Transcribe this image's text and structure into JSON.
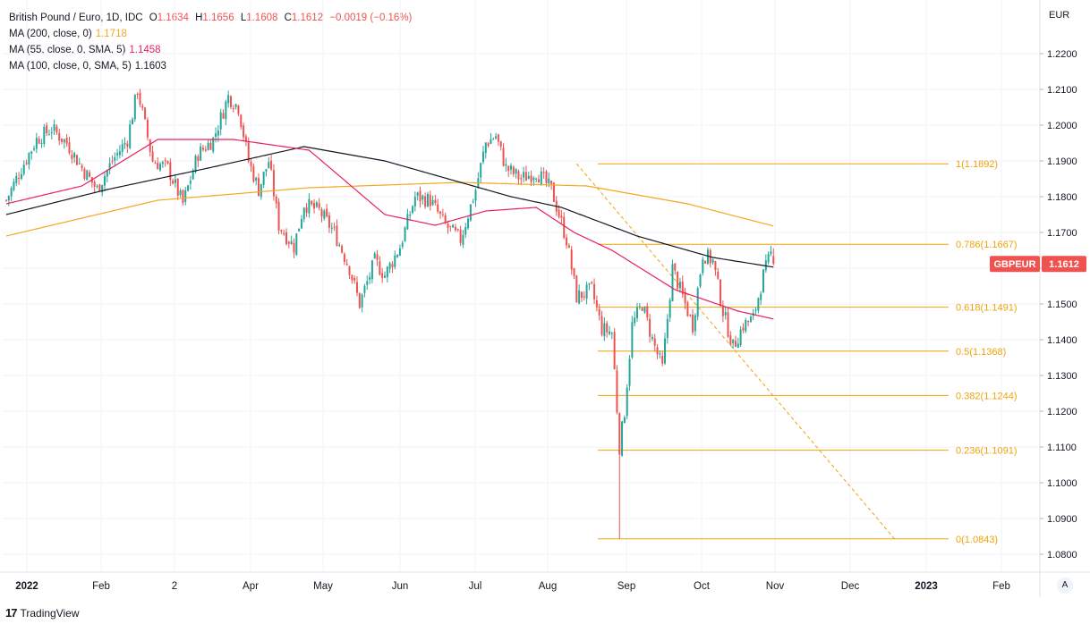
{
  "legend": {
    "title": "British Pound / Euro, 1D, IDC",
    "o_label": "O",
    "o_value": "1.1634",
    "h_label": "H",
    "h_value": "1.1656",
    "l_label": "L",
    "l_value": "1.1608",
    "c_label": "C",
    "c_value": "1.1612",
    "change": "−0.0019 (−0.16%)",
    "ma200_label": "MA (200, close, 0)",
    "ma200_value": "1.1718",
    "ma55_label": "MA (55, close, 0, SMA, 5)",
    "ma55_value": "1.1458",
    "ma100_label": "MA (100, close, 0, SMA, 5)",
    "ma100_value": "1.1603"
  },
  "currency": "EUR",
  "auto_button": "A",
  "brand": {
    "logo": "17",
    "name": "TradingView"
  },
  "colors": {
    "up": "#26a69a",
    "down": "#ef5350",
    "ma200": "#f5a623",
    "ma55": "#e91e63",
    "ma100": "#131722",
    "fib": "#f0a30a",
    "price_tag": "#ef5350"
  },
  "chart_data": {
    "type": "candlestick",
    "title": "British Pound / Euro, 1D, IDC",
    "ylabel": "EUR",
    "ylim": [
      1.075,
      1.228
    ],
    "y_ticks": [
      "1.2200",
      "1.2100",
      "1.2000",
      "1.1900",
      "1.1800",
      "1.1700",
      "1.1600",
      "1.1500",
      "1.1400",
      "1.1300",
      "1.1200",
      "1.1100",
      "1.1000",
      "1.0900",
      "1.0800"
    ],
    "x_ticks": [
      "2022",
      "Feb",
      "2",
      "Apr",
      "May",
      "Jun",
      "Jul",
      "Aug",
      "Sep",
      "Oct",
      "Nov",
      "Dec",
      "2023",
      "Feb"
    ],
    "last_price": {
      "label": "GBPEUR",
      "value": "1.1612"
    },
    "fib_levels": [
      {
        "label": "1(1.1892)",
        "price": 1.1892
      },
      {
        "label": "0.786(1.1667)",
        "price": 1.1667
      },
      {
        "label": "0.618(1.1491)",
        "price": 1.1491
      },
      {
        "label": "0.5(1.1368)",
        "price": 1.1368
      },
      {
        "label": "0.382(1.1244)",
        "price": 1.1244
      },
      {
        "label": "0.236(1.1091)",
        "price": 1.1091
      },
      {
        "label": "0(1.0843)",
        "price": 1.0843
      }
    ],
    "close_path": [
      [
        0,
        1.179
      ],
      [
        6,
        1.188
      ],
      [
        12,
        1.196
      ],
      [
        18,
        1.199
      ],
      [
        24,
        1.195
      ],
      [
        30,
        1.188
      ],
      [
        36,
        1.182
      ],
      [
        42,
        1.19
      ],
      [
        48,
        1.196
      ],
      [
        52,
        1.21
      ],
      [
        58,
        1.19
      ],
      [
        64,
        1.188
      ],
      [
        70,
        1.178
      ],
      [
        76,
        1.192
      ],
      [
        82,
        1.196
      ],
      [
        88,
        1.208
      ],
      [
        92,
        1.205
      ],
      [
        96,
        1.19
      ],
      [
        100,
        1.182
      ],
      [
        104,
        1.19
      ],
      [
        108,
        1.172
      ],
      [
        114,
        1.166
      ],
      [
        118,
        1.178
      ],
      [
        124,
        1.176
      ],
      [
        130,
        1.17
      ],
      [
        136,
        1.16
      ],
      [
        140,
        1.15
      ],
      [
        146,
        1.162
      ],
      [
        150,
        1.158
      ],
      [
        156,
        1.166
      ],
      [
        162,
        1.18
      ],
      [
        168,
        1.179
      ],
      [
        174,
        1.172
      ],
      [
        180,
        1.168
      ],
      [
        186,
        1.182
      ],
      [
        190,
        1.195
      ],
      [
        194,
        1.197
      ],
      [
        198,
        1.188
      ],
      [
        204,
        1.185
      ],
      [
        210,
        1.187
      ],
      [
        216,
        1.182
      ],
      [
        222,
        1.168
      ],
      [
        226,
        1.152
      ],
      [
        232,
        1.154
      ],
      [
        236,
        1.143
      ],
      [
        240,
        1.142
      ],
      [
        243,
        1.11
      ],
      [
        245,
        1.12
      ],
      [
        248,
        1.144
      ],
      [
        252,
        1.15
      ],
      [
        256,
        1.14
      ],
      [
        260,
        1.132
      ],
      [
        264,
        1.16
      ],
      [
        268,
        1.152
      ],
      [
        272,
        1.144
      ],
      [
        276,
        1.164
      ],
      [
        280,
        1.162
      ],
      [
        284,
        1.148
      ],
      [
        288,
        1.138
      ],
      [
        292,
        1.144
      ],
      [
        296,
        1.146
      ],
      [
        300,
        1.158
      ],
      [
        303,
        1.164
      ],
      [
        304,
        1.1612
      ]
    ],
    "ma200_path": [
      [
        0,
        1.169
      ],
      [
        60,
        1.179
      ],
      [
        120,
        1.1825
      ],
      [
        180,
        1.184
      ],
      [
        230,
        1.183
      ],
      [
        270,
        1.178
      ],
      [
        304,
        1.1718
      ]
    ],
    "ma100_path": [
      [
        0,
        1.175
      ],
      [
        40,
        1.182
      ],
      [
        80,
        1.188
      ],
      [
        118,
        1.194
      ],
      [
        150,
        1.19
      ],
      [
        180,
        1.184
      ],
      [
        200,
        1.18
      ],
      [
        220,
        1.177
      ],
      [
        250,
        1.169
      ],
      [
        280,
        1.163
      ],
      [
        304,
        1.1603
      ]
    ],
    "ma55_path": [
      [
        0,
        1.178
      ],
      [
        30,
        1.183
      ],
      [
        60,
        1.196
      ],
      [
        90,
        1.196
      ],
      [
        120,
        1.193
      ],
      [
        150,
        1.175
      ],
      [
        170,
        1.172
      ],
      [
        190,
        1.176
      ],
      [
        210,
        1.177
      ],
      [
        225,
        1.17
      ],
      [
        240,
        1.165
      ],
      [
        265,
        1.154
      ],
      [
        290,
        1.148
      ],
      [
        304,
        1.1458
      ]
    ],
    "trendline": {
      "from": [
        226,
        1.1892
      ],
      "to": [
        352,
        1.0843
      ]
    }
  }
}
